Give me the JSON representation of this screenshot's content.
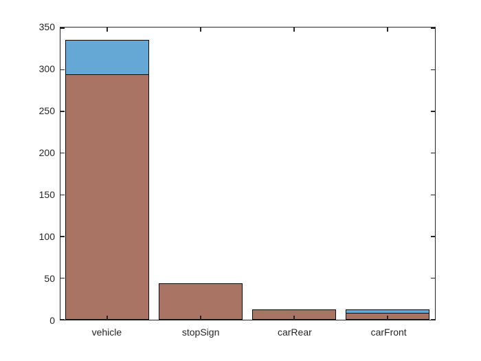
{
  "figure": {
    "background": "#ffffff",
    "axis_color": "#262626",
    "text_color": "#262626"
  },
  "chart_data": {
    "type": "bar",
    "style": "overlaid",
    "title": "",
    "xlabel": "",
    "ylabel": "",
    "categories": [
      "vehicle",
      "stopSign",
      "carRear",
      "carFront"
    ],
    "series": [
      {
        "name": "series-1-blue",
        "color": "#65A8D5",
        "values": [
          336,
          44,
          12,
          12
        ]
      },
      {
        "name": "series-2-brown",
        "color": "#AA7464",
        "values": [
          295,
          44,
          12,
          8
        ]
      }
    ],
    "bar_edge_color": "#0a0a0a",
    "bar_width_ratio": 0.9,
    "ylim": [
      0,
      350
    ],
    "yticks": [
      0,
      50,
      100,
      150,
      200,
      250,
      300,
      350
    ],
    "ytick_labels": [
      "0",
      "50",
      "100",
      "150",
      "200",
      "250",
      "300",
      "350"
    ],
    "grid": false,
    "legend_position": "none",
    "box": true,
    "tick_direction": "in"
  }
}
